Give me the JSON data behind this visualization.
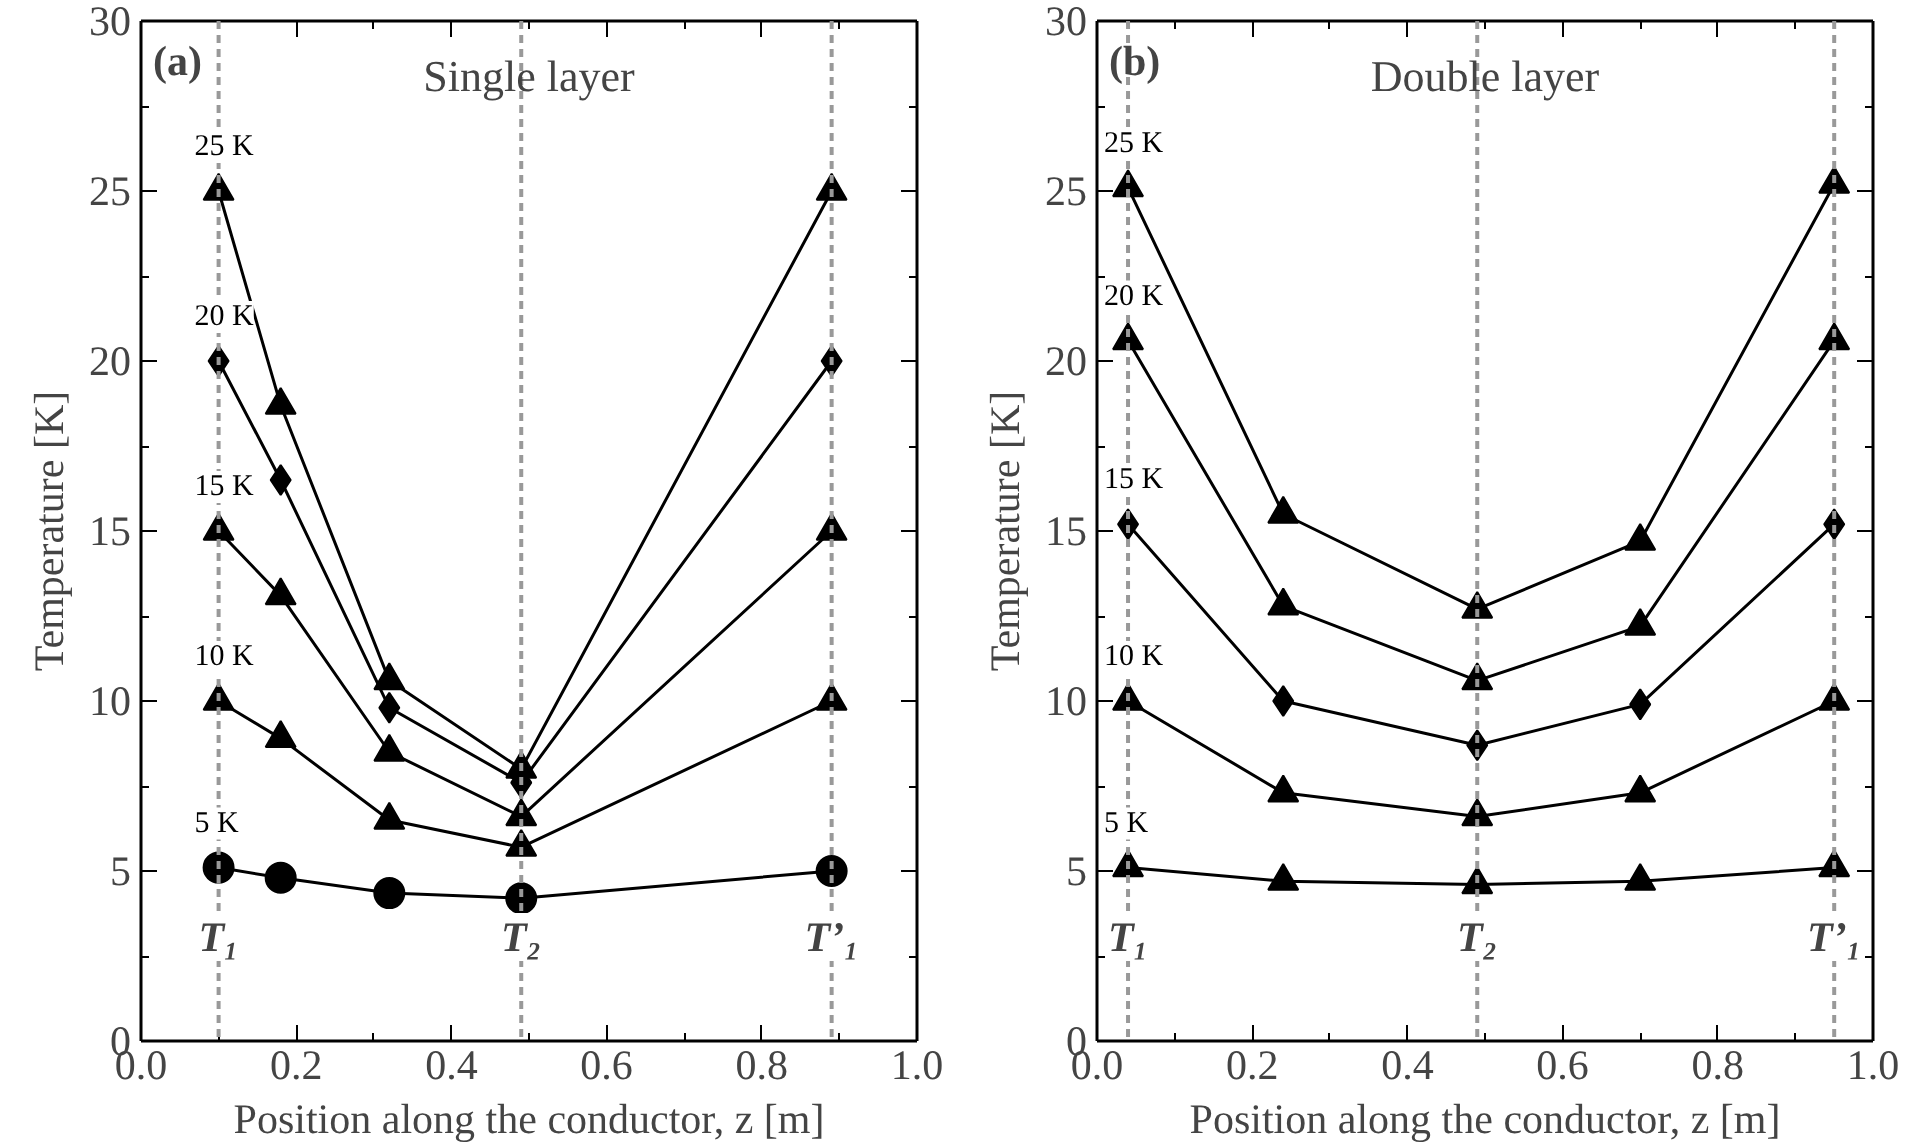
{
  "chart_data": [
    {
      "type": "line",
      "title": "Single layer",
      "xlabel": "Position along the conductor, z [m]",
      "ylabel": "Temperature [K]",
      "xlim": [
        0.0,
        1.0
      ],
      "xticks": [
        {
          "value": 0.0,
          "label": "0.0"
        },
        {
          "value": 0.2,
          "label": "0.2"
        },
        {
          "value": 0.4,
          "label": "0.4"
        },
        {
          "value": 0.6,
          "label": "0.6"
        },
        {
          "value": 0.8,
          "label": "0.8"
        },
        {
          "value": 1.0,
          "label": "1.0"
        }
      ],
      "ylim": [
        0,
        30
      ],
      "yticks": [
        0,
        5,
        10,
        15,
        20,
        25,
        30
      ],
      "grid": false,
      "line_style": "solid",
      "annotations": [
        "(a)"
      ],
      "ref_lines": [
        {
          "axis": "x",
          "value": 0.1,
          "label": "T₁",
          "color": "#999999",
          "line_style": "dashed"
        },
        {
          "axis": "x",
          "value": 0.49,
          "label": "T₂",
          "color": "#999999",
          "line_style": "dashed"
        },
        {
          "axis": "x",
          "value": 0.89,
          "label": "T’₁",
          "color": "#999999",
          "line_style": "dashed"
        }
      ],
      "x": [
        0.1,
        0.18,
        0.32,
        0.49,
        0.89
      ],
      "series": [
        {
          "name": "5 K",
          "color": "#000000",
          "marker": "circle",
          "values": [
            5.1,
            4.8,
            4.35,
            4.2,
            5.0
          ]
        },
        {
          "name": "10 K",
          "color": "#000000",
          "marker": "triangle",
          "values": [
            10.0,
            8.9,
            6.5,
            5.7,
            10.0
          ]
        },
        {
          "name": "15 K",
          "color": "#000000",
          "marker": "triangle",
          "values": [
            15.0,
            13.1,
            8.5,
            6.6,
            15.0
          ]
        },
        {
          "name": "20 K",
          "color": "#000000",
          "marker": "diamond",
          "values": [
            20.0,
            16.5,
            9.8,
            7.6,
            20.0
          ]
        },
        {
          "name": "25 K",
          "color": "#000000",
          "marker": "triangle",
          "values": [
            25.0,
            18.7,
            10.6,
            8.0,
            25.0
          ]
        }
      ]
    },
    {
      "type": "line",
      "title": "Double layer",
      "xlabel": "Position along the conductor, z [m]",
      "ylabel": "Temperature [K]",
      "xlim": [
        0.0,
        1.0
      ],
      "xticks": [
        {
          "value": 0.0,
          "label": "0.0"
        },
        {
          "value": 0.2,
          "label": "0.2"
        },
        {
          "value": 0.4,
          "label": "0.4"
        },
        {
          "value": 0.6,
          "label": "0.6"
        },
        {
          "value": 0.8,
          "label": "0.8"
        },
        {
          "value": 1.0,
          "label": "1.0"
        }
      ],
      "ylim": [
        0,
        30
      ],
      "yticks": [
        0,
        5,
        10,
        15,
        20,
        25,
        30
      ],
      "grid": false,
      "line_style": "solid",
      "annotations": [
        "(b)"
      ],
      "ref_lines": [
        {
          "axis": "x",
          "value": 0.04,
          "label": "T₁",
          "color": "#999999",
          "line_style": "dashed"
        },
        {
          "axis": "x",
          "value": 0.49,
          "label": "T₂",
          "color": "#999999",
          "line_style": "dashed"
        },
        {
          "axis": "x",
          "value": 0.95,
          "label": "T’₁",
          "color": "#999999",
          "line_style": "dashed"
        }
      ],
      "x": [
        0.04,
        0.24,
        0.49,
        0.7,
        0.95
      ],
      "series": [
        {
          "name": "5 K",
          "color": "#000000",
          "marker": "triangle",
          "values": [
            5.1,
            4.7,
            4.6,
            4.7,
            5.1
          ]
        },
        {
          "name": "10 K",
          "color": "#000000",
          "marker": "triangle",
          "values": [
            10.0,
            7.3,
            6.6,
            7.3,
            10.0
          ]
        },
        {
          "name": "15 K",
          "color": "#000000",
          "marker": "diamond",
          "values": [
            15.2,
            10.0,
            8.7,
            9.9,
            15.2
          ]
        },
        {
          "name": "20 K",
          "color": "#000000",
          "marker": "triangle",
          "values": [
            20.6,
            12.8,
            10.6,
            12.2,
            20.6
          ]
        },
        {
          "name": "25 K",
          "color": "#000000",
          "marker": "triangle",
          "values": [
            25.1,
            15.5,
            12.7,
            14.7,
            25.2
          ]
        }
      ]
    }
  ]
}
